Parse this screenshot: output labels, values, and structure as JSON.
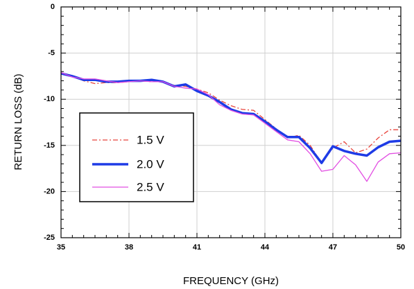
{
  "chart_data": {
    "type": "line",
    "title": "",
    "xlabel": "FREQUENCY (GHz)",
    "ylabel": "RETURN LOSS (dB)",
    "xlim": [
      35,
      50
    ],
    "ylim": [
      -25,
      0
    ],
    "xticks": [
      35,
      38,
      41,
      44,
      47,
      50
    ],
    "yticks": [
      0,
      -5,
      -10,
      -15,
      -20,
      -25
    ],
    "grid": true,
    "legend_position": "center-left",
    "series": [
      {
        "name": "1.5 V",
        "color": "#e8443c",
        "style": "dash-dot",
        "x": [
          35,
          35.5,
          36,
          36.5,
          37,
          37.5,
          38,
          38.5,
          39,
          39.5,
          40,
          40.5,
          41,
          41.5,
          42,
          42.5,
          43,
          43.5,
          44,
          44.5,
          45,
          45.5,
          46,
          46.5,
          47,
          47.5,
          48,
          48.5,
          49,
          49.5,
          50
        ],
        "y": [
          -7.1,
          -7.5,
          -8.0,
          -8.3,
          -8.2,
          -8.2,
          -8.1,
          -8.0,
          -8.1,
          -8.1,
          -8.5,
          -8.6,
          -8.9,
          -9.3,
          -10.1,
          -10.7,
          -11.1,
          -11.2,
          -12.2,
          -13.2,
          -14.2,
          -13.9,
          -15.0,
          -16.9,
          -15.3,
          -14.6,
          -15.8,
          -15.4,
          -14.2,
          -13.3,
          -13.3
        ]
      },
      {
        "name": "2.0 V",
        "color": "#1e3be6",
        "style": "solid",
        "x": [
          35,
          35.5,
          36,
          36.5,
          37,
          37.5,
          38,
          38.5,
          39,
          39.5,
          40,
          40.5,
          41,
          41.5,
          42,
          42.5,
          43,
          43.5,
          44,
          44.5,
          45,
          45.5,
          46,
          46.5,
          47,
          47.5,
          48,
          48.5,
          49,
          49.5,
          50
        ],
        "y": [
          -7.2,
          -7.5,
          -7.9,
          -7.9,
          -8.1,
          -8.1,
          -8.0,
          -8.0,
          -7.9,
          -8.1,
          -8.6,
          -8.4,
          -9.1,
          -9.6,
          -10.3,
          -11.1,
          -11.5,
          -11.6,
          -12.4,
          -13.3,
          -14.1,
          -14.1,
          -15.3,
          -16.9,
          -15.1,
          -15.6,
          -15.9,
          -16.1,
          -15.2,
          -14.6,
          -14.5
        ]
      },
      {
        "name": "2.5 V",
        "color": "#e24de2",
        "style": "solid",
        "x": [
          35,
          35.5,
          36,
          36.5,
          37,
          37.5,
          38,
          38.5,
          39,
          39.5,
          40,
          40.5,
          41,
          41.5,
          42,
          42.5,
          43,
          43.5,
          44,
          44.5,
          45,
          45.5,
          46,
          46.5,
          47,
          47.5,
          48,
          48.5,
          49,
          49.5,
          50
        ],
        "y": [
          -7.1,
          -7.6,
          -7.8,
          -7.8,
          -8.0,
          -8.2,
          -8.1,
          -8.0,
          -8.1,
          -8.1,
          -8.6,
          -8.8,
          -8.9,
          -9.5,
          -10.6,
          -11.2,
          -11.6,
          -11.7,
          -12.6,
          -13.5,
          -14.4,
          -14.6,
          -15.9,
          -17.8,
          -17.6,
          -16.1,
          -17.1,
          -18.9,
          -16.8,
          -15.9,
          -15.8
        ]
      }
    ]
  }
}
